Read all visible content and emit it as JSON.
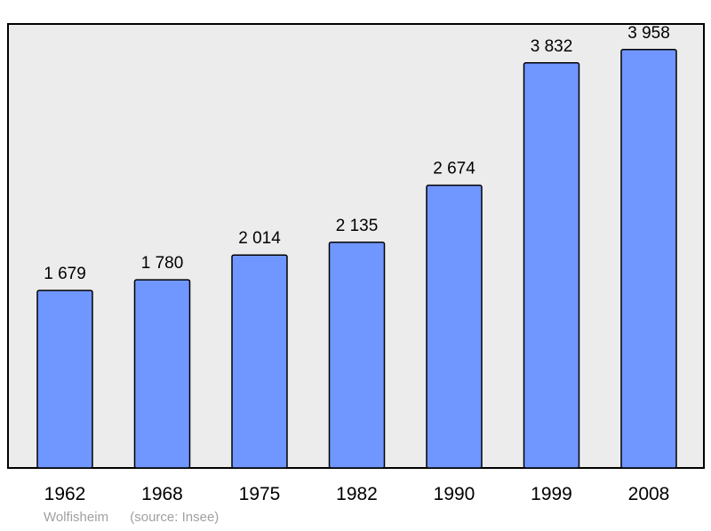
{
  "chart_data": {
    "type": "bar",
    "categories": [
      "1962",
      "1968",
      "1975",
      "1982",
      "1990",
      "1999",
      "2008"
    ],
    "values": [
      1679,
      1780,
      2014,
      2135,
      2674,
      3832,
      3958
    ],
    "value_labels": [
      "1 679",
      "1 780",
      "2 014",
      "2 135",
      "2 674",
      "3 832",
      "3 958"
    ],
    "title": "",
    "xlabel": "",
    "ylabel": "",
    "ylim": [
      0,
      4200
    ],
    "grid": false,
    "colors": {
      "bar": "#7096ff",
      "plot_background": "#ececec",
      "frame": "#000000"
    }
  },
  "caption": {
    "place": "Wolfisheim",
    "source": "(source: Insee)"
  }
}
